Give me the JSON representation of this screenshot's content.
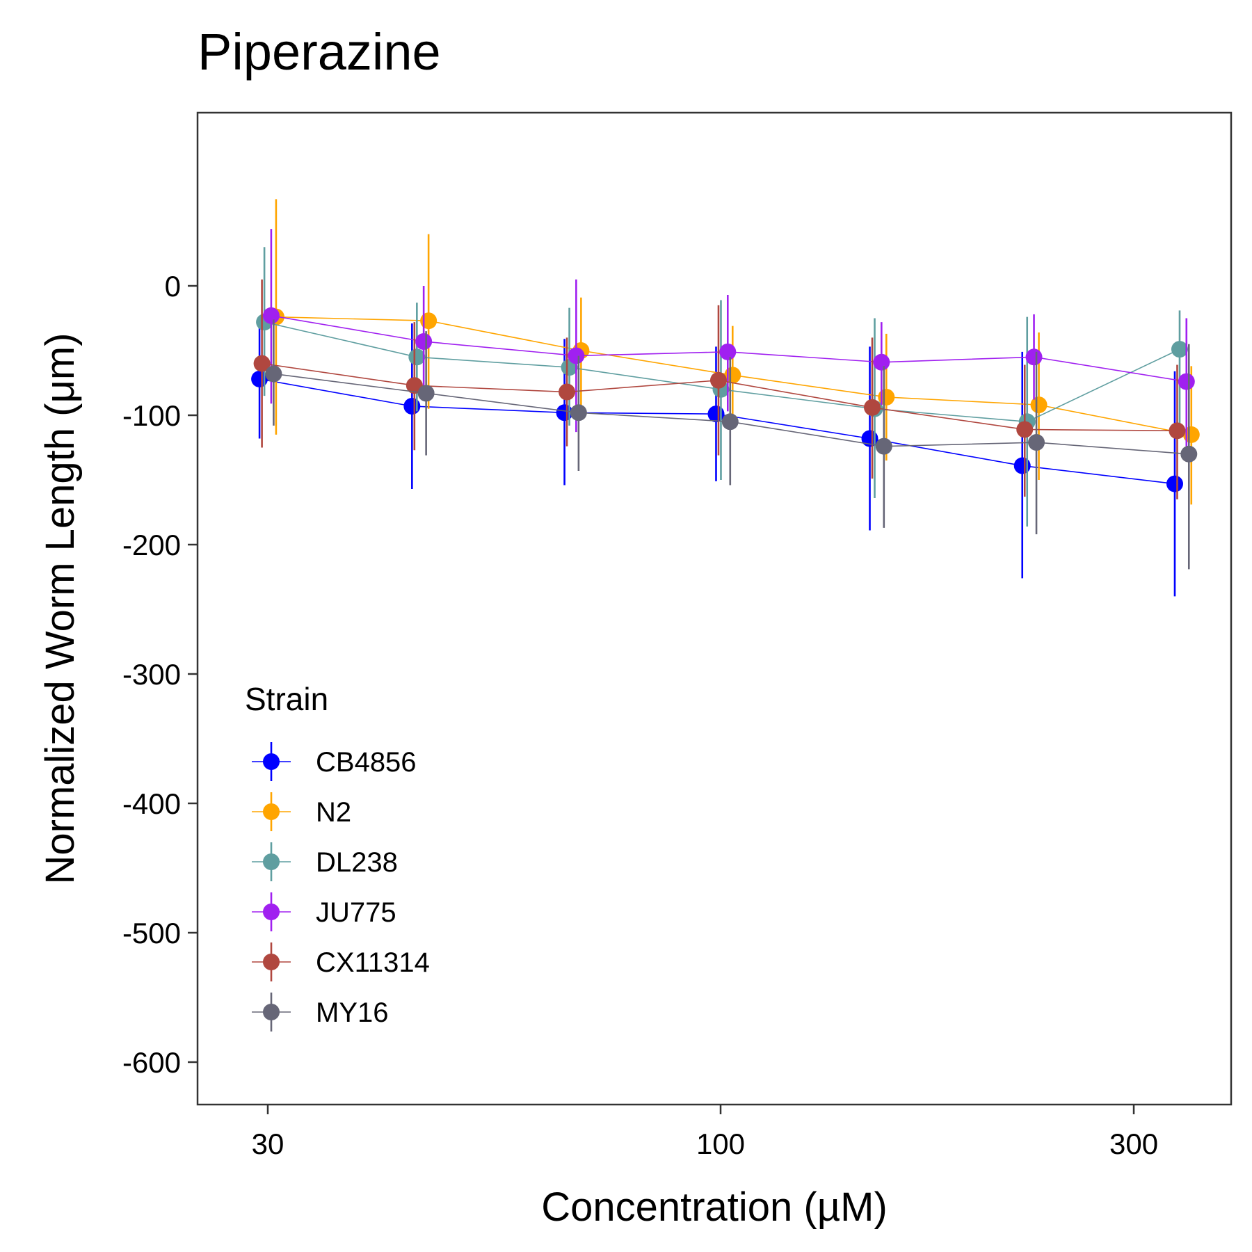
{
  "chart_data": {
    "type": "line",
    "title": "Piperazine",
    "xlabel": "Concentration (µM)",
    "ylabel": "Normalized Worm Length (μm)",
    "x_scale": "log",
    "x_ticks": [
      30,
      100,
      300
    ],
    "x_tick_labels": [
      "30",
      "100",
      "300"
    ],
    "y_ticks": [
      0,
      -100,
      -200,
      -300,
      -400,
      -500,
      -600
    ],
    "y_tick_labels": [
      "0",
      "-100",
      "-200",
      "-300",
      "-400",
      "-500",
      "-600"
    ],
    "ylim": [
      -630,
      137
    ],
    "x": [
      30,
      45,
      67.5,
      101,
      152,
      228,
      342
    ],
    "grid": false,
    "legend": {
      "title": "Strain",
      "position": "bottom-left"
    },
    "series": [
      {
        "name": "CB4856",
        "color": "#0000FF",
        "values": [
          -72,
          -93,
          -98,
          -99,
          -118,
          -139,
          -153
        ],
        "lower": [
          -118,
          -157,
          -154,
          -151,
          -189,
          -226,
          -240
        ],
        "upper": [
          -27,
          -29,
          -41,
          -47,
          -47,
          -51,
          -66
        ]
      },
      {
        "name": "N2",
        "color": "#FFA500",
        "values": [
          -24,
          -27,
          -50,
          -69,
          -86,
          -92,
          -115
        ],
        "lower": [
          -115,
          -95,
          -95,
          -110,
          -135,
          -150,
          -169
        ],
        "upper": [
          67,
          40,
          -9,
          -31,
          -37,
          -36,
          -62
        ]
      },
      {
        "name": "DL238",
        "color": "#5F9EA0",
        "values": [
          -28,
          -55,
          -63,
          -80,
          -95,
          -105,
          -49
        ],
        "lower": [
          -85,
          -97,
          -108,
          -150,
          -164,
          -186,
          -109
        ],
        "upper": [
          30,
          -13,
          -17,
          -11,
          -25,
          -24,
          -19
        ]
      },
      {
        "name": "JU775",
        "color": "#A020F0",
        "values": [
          -23,
          -43,
          -54,
          -51,
          -59,
          -55,
          -74
        ],
        "lower": [
          -91,
          -85,
          -113,
          -97,
          -92,
          -88,
          -124
        ],
        "upper": [
          44,
          0,
          5,
          -7,
          -28,
          -22,
          -25
        ]
      },
      {
        "name": "CX11314",
        "color": "#B0473F",
        "values": [
          -60,
          -77,
          -82,
          -73,
          -94,
          -111,
          -112
        ],
        "lower": [
          -125,
          -127,
          -124,
          -131,
          -149,
          -163,
          -165
        ],
        "upper": [
          5,
          -28,
          -40,
          -15,
          -40,
          -61,
          -61
        ]
      },
      {
        "name": "MY16",
        "color": "#666677",
        "values": [
          -68,
          -83,
          -98,
          -105,
          -124,
          -121,
          -130
        ],
        "lower": [
          -108,
          -131,
          -143,
          -154,
          -187,
          -192,
          -219
        ],
        "upper": [
          -26,
          -35,
          -54,
          -55,
          -62,
          -51,
          -45
        ]
      }
    ]
  }
}
